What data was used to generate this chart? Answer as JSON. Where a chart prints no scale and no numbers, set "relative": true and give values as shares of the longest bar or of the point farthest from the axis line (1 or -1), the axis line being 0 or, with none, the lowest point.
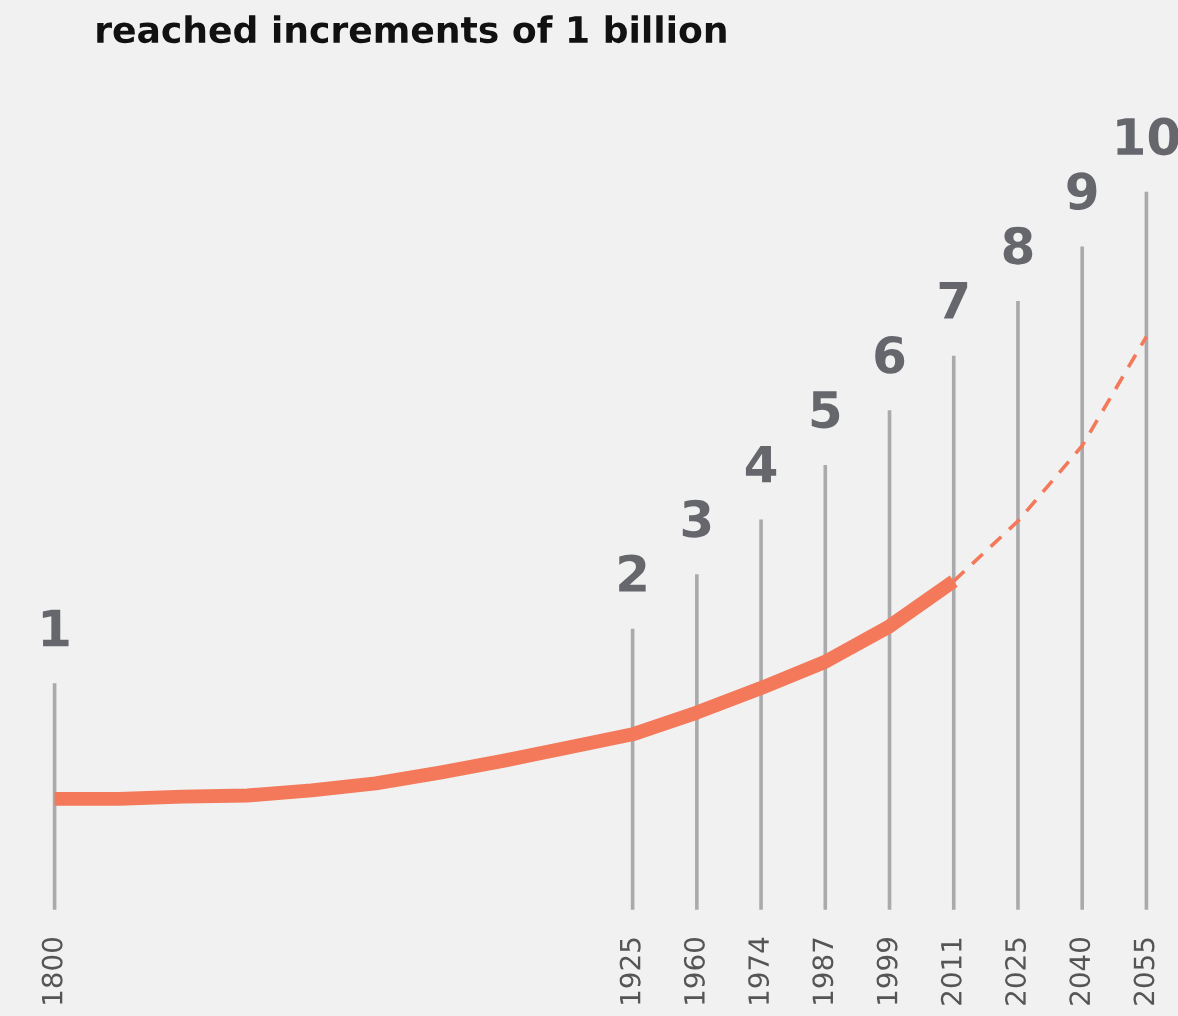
{
  "chart_data": {
    "type": "line",
    "title": "reached increments of 1 billion",
    "relative": true,
    "categories": [
      "1800",
      null,
      null,
      null,
      null,
      null,
      null,
      null,
      null,
      "1925",
      "1960",
      "1974",
      "1987",
      "1999",
      "2011",
      "2025",
      "2040",
      "2055"
    ],
    "series": [
      {
        "color": "#f4785a",
        "line_style": "solid",
        "values": [
          0.191,
          0.191,
          0.195,
          0.197,
          0.206,
          0.218,
          0.237,
          0.258,
          0.281,
          0.304,
          0.342,
          0.385,
          0.431,
          0.493,
          0.572,
          null,
          null,
          null
        ]
      },
      {
        "color": "#f4785a",
        "line_style": "dashed",
        "values": [
          null,
          null,
          null,
          null,
          null,
          null,
          null,
          null,
          null,
          null,
          null,
          null,
          null,
          null,
          0.572,
          0.677,
          0.809,
          1
        ]
      }
    ],
    "ref_lines": [
      {
        "axis": "x",
        "value": "1800",
        "label": "1",
        "color": "#a9aaab"
      },
      {
        "axis": "x",
        "value": "1925",
        "label": "2",
        "color": "#a9aaab"
      },
      {
        "axis": "x",
        "value": "1960",
        "label": "3",
        "color": "#a9aaab"
      },
      {
        "axis": "x",
        "value": "1974",
        "label": "4",
        "color": "#a9aaab"
      },
      {
        "axis": "x",
        "value": "1987",
        "label": "5",
        "color": "#a9aaab"
      },
      {
        "axis": "x",
        "value": "1999",
        "label": "6",
        "color": "#a9aaab"
      },
      {
        "axis": "x",
        "value": "2011",
        "label": "7",
        "color": "#a9aaab"
      },
      {
        "axis": "x",
        "value": "2025",
        "label": "8",
        "color": "#a9aaab"
      },
      {
        "axis": "x",
        "value": "2040",
        "label": "9",
        "color": "#a9aaab"
      },
      {
        "axis": "x",
        "value": "2055",
        "label": "10",
        "color": "#a9aaab"
      }
    ]
  }
}
